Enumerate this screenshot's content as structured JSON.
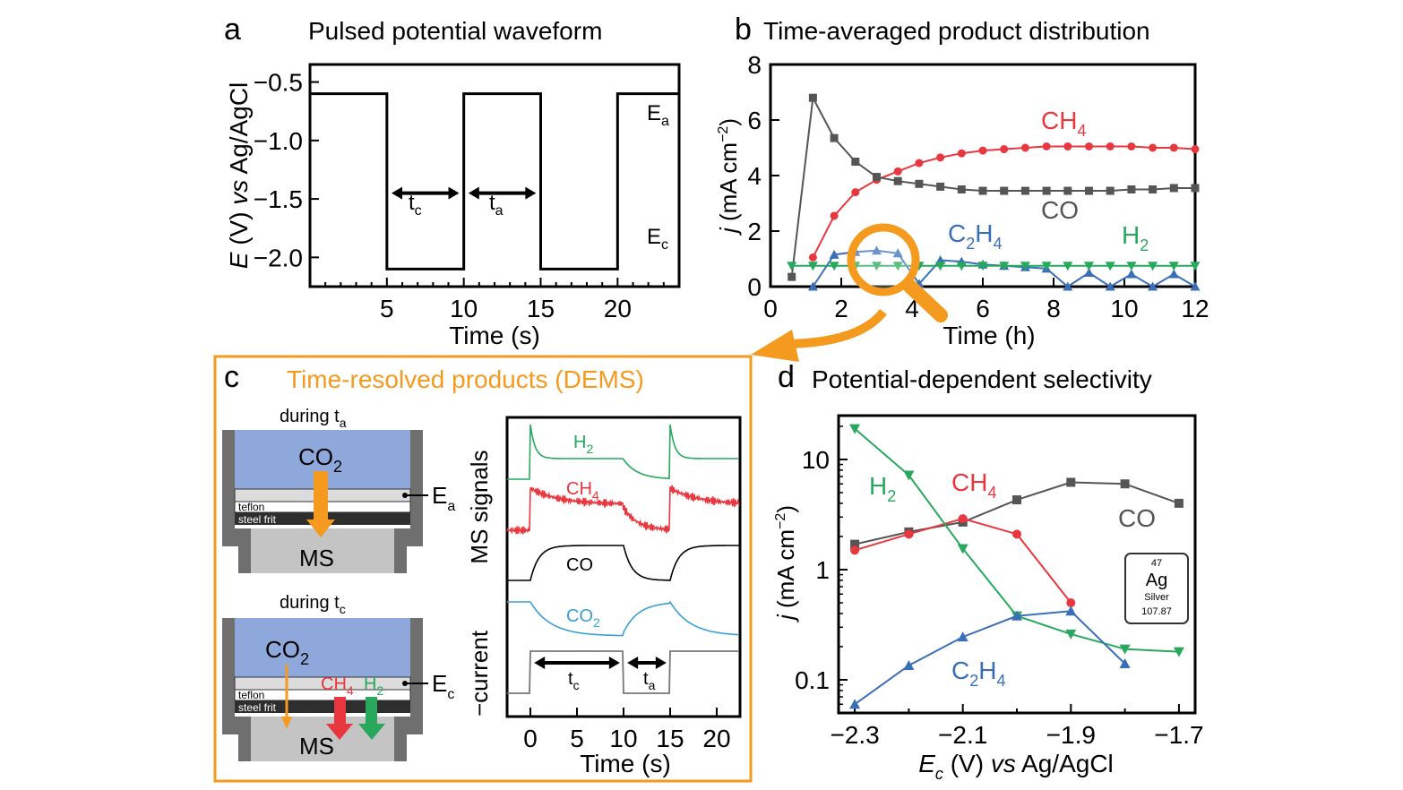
{
  "colors": {
    "co": "#555555",
    "ch4": "#e8373f",
    "h2": "#27a85c",
    "c2h4": "#3a6fb8",
    "co2": "#3a9fd4",
    "orange": "#f39a1f",
    "electrolyte": "#8fa8dc"
  },
  "panels": {
    "a": {
      "letter": "a",
      "title": "Pulsed potential waveform"
    },
    "b": {
      "letter": "b",
      "title": "Time-averaged product distribution"
    },
    "c": {
      "letter": "c",
      "title": "Time-resolved products (DEMS)"
    },
    "d": {
      "letter": "d",
      "title": "Potential-dependent selectivity"
    }
  },
  "cell_labels": {
    "during_ta": "during t",
    "during_ta_sub": "a",
    "during_tc": "during t",
    "during_tc_sub": "c",
    "co2": "CO",
    "co2_sub": "2",
    "teflon": "teflon",
    "steel_frit": "steel frit",
    "ms": "MS",
    "ea": "E",
    "ea_sub": "a",
    "ec": "E",
    "ec_sub": "c",
    "ch4": "CH",
    "ch4_sub": "4",
    "h2": "H",
    "h2_sub": "2"
  },
  "element_card": {
    "number": "47",
    "symbol": "Ag",
    "name": "Silver",
    "mass": "107.87"
  },
  "chart_data": [
    {
      "panel": "a",
      "type": "line",
      "title": "Pulsed potential waveform",
      "xlabel": "Time (s)",
      "ylabel_parts": [
        "E",
        " (V) ",
        "vs",
        " Ag/AgCl"
      ],
      "xlim": [
        0,
        24
      ],
      "ylim": [
        -2.25,
        -0.35
      ],
      "xticks": [
        5,
        10,
        15,
        20
      ],
      "yticks": [
        -0.5,
        -1.0,
        -1.5,
        -2.0
      ],
      "ytick_labels": [
        "−0.5",
        "−1.0",
        "−1.5",
        "−2.0"
      ],
      "series": [
        {
          "values": [
            [
              0,
              -0.6
            ],
            [
              5,
              -0.6
            ],
            [
              5,
              -2.1
            ],
            [
              10,
              -2.1
            ],
            [
              10,
              -0.6
            ],
            [
              15,
              -0.6
            ],
            [
              15,
              -2.1
            ],
            [
              20,
              -2.1
            ],
            [
              20,
              -0.6
            ],
            [
              24,
              -0.6
            ]
          ]
        }
      ],
      "annotations": {
        "ea": "E",
        "ea_sub": "a",
        "ec": "E",
        "ec_sub": "c",
        "tc": "t",
        "tc_sub": "c",
        "ta": "t",
        "ta_sub": "a"
      }
    },
    {
      "panel": "b",
      "type": "line",
      "title": "Time-averaged product distribution",
      "xlabel": "Time (h)",
      "ylabel": "j (mA cm−2)",
      "xlim": [
        0,
        12
      ],
      "ylim": [
        0,
        8
      ],
      "xticks": [
        0,
        2,
        4,
        6,
        8,
        10,
        12
      ],
      "yticks": [
        0,
        2,
        4,
        6,
        8
      ],
      "series": [
        {
          "name": "CH4",
          "marker": "circle",
          "x": [
            1.2,
            1.8,
            2.4,
            3.0,
            3.6,
            4.2,
            4.8,
            5.4,
            6.0,
            6.6,
            7.2,
            7.8,
            8.4,
            9.0,
            9.6,
            10.2,
            10.8,
            11.4,
            12.0
          ],
          "y": [
            1.05,
            2.55,
            3.4,
            3.85,
            4.15,
            4.45,
            4.65,
            4.8,
            4.9,
            4.95,
            5.0,
            5.05,
            5.05,
            5.05,
            5.05,
            5.05,
            5.0,
            5.0,
            4.95
          ]
        },
        {
          "name": "CO",
          "marker": "square",
          "x": [
            0.6,
            1.2,
            1.8,
            2.4,
            3.0,
            3.6,
            4.2,
            4.8,
            5.4,
            6.0,
            6.6,
            7.2,
            7.8,
            8.4,
            9.0,
            9.6,
            10.2,
            10.8,
            11.4,
            12.0
          ],
          "y": [
            0.35,
            6.8,
            5.35,
            4.5,
            3.95,
            3.8,
            3.7,
            3.6,
            3.5,
            3.45,
            3.45,
            3.45,
            3.45,
            3.45,
            3.45,
            3.45,
            3.5,
            3.5,
            3.55,
            3.55
          ]
        },
        {
          "name": "C2H4",
          "marker": "triangle-up",
          "x": [
            1.2,
            1.8,
            2.4,
            3.0,
            3.6,
            4.2,
            4.8,
            5.4,
            6.0,
            6.6,
            7.2,
            7.8,
            8.4,
            9.0,
            9.6,
            10.2,
            10.8,
            11.4,
            12.0
          ],
          "y": [
            0.0,
            1.15,
            1.25,
            1.3,
            1.2,
            0.1,
            0.95,
            0.9,
            0.8,
            0.75,
            0.7,
            0.65,
            0.0,
            0.5,
            0.0,
            0.45,
            0.0,
            0.45,
            0.0
          ]
        },
        {
          "name": "H2",
          "marker": "triangle-down",
          "x": [
            0.6,
            1.2,
            1.8,
            2.4,
            3.0,
            3.6,
            4.2,
            4.8,
            5.4,
            6.0,
            6.6,
            7.2,
            7.8,
            8.4,
            9.0,
            9.6,
            10.2,
            10.8,
            11.4,
            12.0
          ],
          "y": [
            0.75,
            0.75,
            0.75,
            0.75,
            0.75,
            0.75,
            0.75,
            0.75,
            0.75,
            0.75,
            0.75,
            0.75,
            0.75,
            0.75,
            0.75,
            0.75,
            0.75,
            0.75,
            0.75,
            0.75
          ]
        }
      ],
      "labels": {
        "ch4": "CH",
        "ch4_sub": "4",
        "co": "CO",
        "c2h4_a": "C",
        "c2h4_b": "2",
        "c2h4_c": "H",
        "c2h4_d": "4",
        "h2": "H",
        "h2_sub": "2"
      }
    },
    {
      "panel": "c",
      "type": "line",
      "title": "Time-resolved products (DEMS)",
      "xlabel": "Time (s)",
      "ylabel_top": "MS signals",
      "ylabel_bottom": "−current",
      "xlim": [
        -2.5,
        22.5
      ],
      "xticks": [
        0,
        5,
        10,
        15,
        20
      ],
      "series": [
        {
          "name": "H2",
          "shape": "spike"
        },
        {
          "name": "CH4",
          "shape": "noisy-step"
        },
        {
          "name": "CO",
          "shape": "smooth-step"
        },
        {
          "name": "CO2",
          "shape": "decay"
        },
        {
          "name": "current",
          "shape": "square-wave"
        }
      ],
      "labels": {
        "h2": "H",
        "h2_sub": "2",
        "ch4": "CH",
        "ch4_sub": "4",
        "co": "CO",
        "co2": "CO",
        "co2_sub": "2",
        "tc": "t",
        "tc_sub": "c",
        "ta": "t",
        "ta_sub": "a"
      }
    },
    {
      "panel": "d",
      "type": "line",
      "title": "Potential-dependent selectivity",
      "xlabel_parts": [
        "E",
        "c",
        " (V) ",
        "vs",
        " Ag/AgCl"
      ],
      "ylabel": "j (mA cm−2)",
      "yscale": "log",
      "xlim": [
        -2.33,
        -1.67
      ],
      "ylim": [
        0.05,
        25
      ],
      "xticks": [
        -2.3,
        -2.1,
        -1.9,
        -1.7
      ],
      "xtick_labels": [
        "−2.3",
        "−2.1",
        "−1.9",
        "−1.7"
      ],
      "yticks": [
        0.1,
        1,
        10
      ],
      "ytick_labels": [
        "0.1",
        "1",
        "10"
      ],
      "series": [
        {
          "name": "CO",
          "marker": "square",
          "x": [
            -2.3,
            -2.2,
            -2.1,
            -2.0,
            -1.9,
            -1.8,
            -1.7
          ],
          "y": [
            1.7,
            2.2,
            2.7,
            4.3,
            6.2,
            6.0,
            4.0
          ]
        },
        {
          "name": "CH4",
          "marker": "circle",
          "x": [
            -2.3,
            -2.2,
            -2.1,
            -2.0,
            -1.9
          ],
          "y": [
            1.5,
            2.1,
            2.9,
            2.1,
            0.5
          ]
        },
        {
          "name": "H2",
          "marker": "triangle-down",
          "x": [
            -2.3,
            -2.2,
            -2.1,
            -2.0,
            -1.9,
            -1.8,
            -1.7
          ],
          "y": [
            19,
            7.2,
            1.55,
            0.38,
            0.26,
            0.19,
            0.18
          ]
        },
        {
          "name": "C2H4",
          "marker": "triangle-up",
          "x": [
            -2.3,
            -2.2,
            -2.1,
            -2.0,
            -1.9,
            -1.8
          ],
          "y": [
            0.06,
            0.135,
            0.245,
            0.38,
            0.42,
            0.14
          ]
        }
      ],
      "labels": {
        "h2": "H",
        "h2_sub": "2",
        "ch4": "CH",
        "ch4_sub": "4",
        "co": "CO",
        "c2h4_a": "C",
        "c2h4_b": "2",
        "c2h4_c": "H",
        "c2h4_d": "4"
      }
    }
  ]
}
